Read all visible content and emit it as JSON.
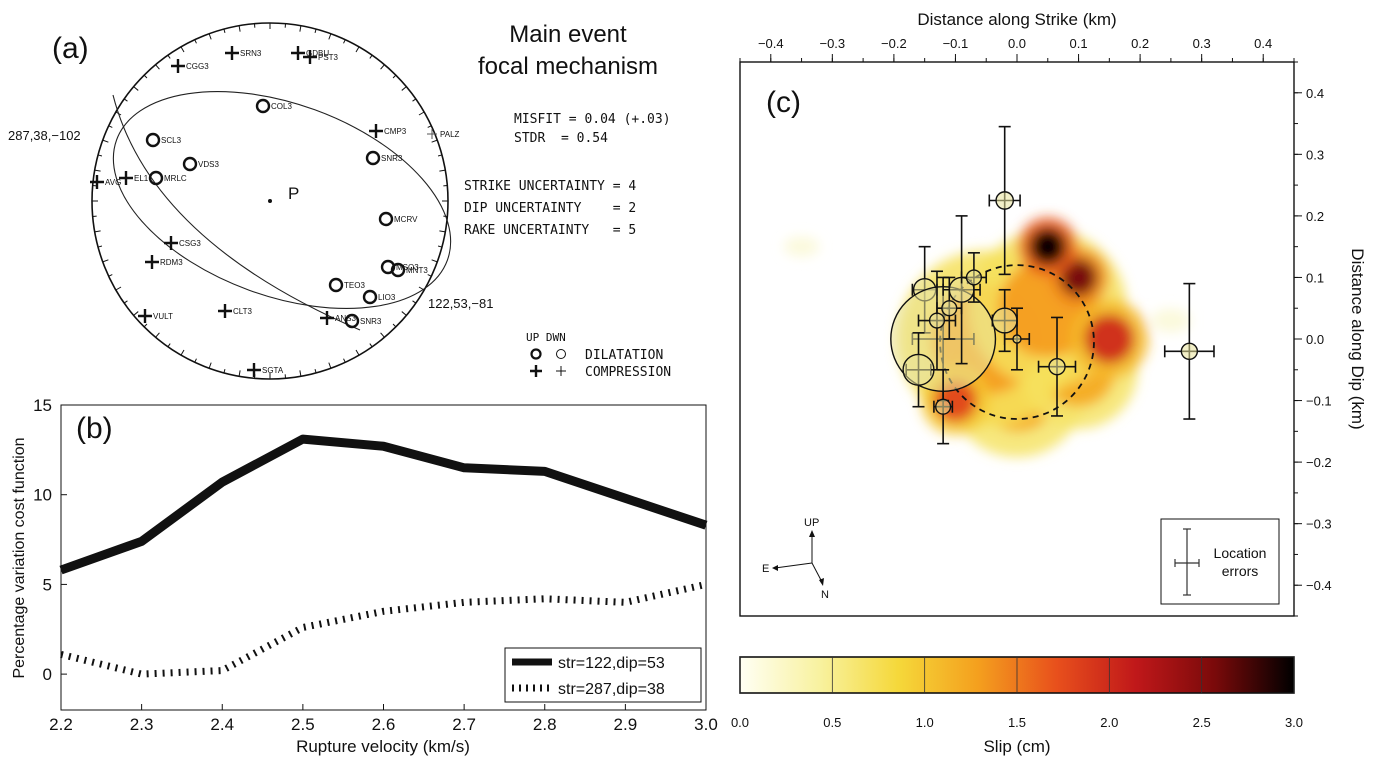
{
  "chart_data": [
    {
      "panel": "(a)",
      "type": "focal-mechanism",
      "title": "Main event\nfocal mechanism",
      "center_label": "P",
      "nodal_planes": [
        {
          "label": "287,38,−102",
          "strike": 287,
          "dip": 38,
          "rake": -102
        },
        {
          "label": "122,53,−81",
          "strike": 122,
          "dip": 53,
          "rake": -81
        }
      ],
      "stats": {
        "misfit": "MISFIT = 0.04 (+.03)",
        "stdr": "STDR  = 0.54",
        "strike_unc": "STRIKE UNCERTAINTY = 4",
        "dip_unc": "DIP UNCERTAINTY    = 2",
        "rake_unc": "RAKE UNCERTAINTY   = 5"
      },
      "legend": {
        "header": "UP DWN",
        "dilatation": "DILATATION",
        "compression": "COMPRESSION"
      },
      "stations": [
        {
          "name": "CGG3",
          "pol": "C"
        },
        {
          "name": "SRN3",
          "pol": "C"
        },
        {
          "name": "GDBU",
          "pol": "C"
        },
        {
          "name": "PST3",
          "pol": "C"
        },
        {
          "name": "COL3",
          "pol": "D"
        },
        {
          "name": "CMP3",
          "pol": "C"
        },
        {
          "name": "PALZ",
          "pol": "c"
        },
        {
          "name": "SCL3",
          "pol": "D"
        },
        {
          "name": "SNR3",
          "pol": "D"
        },
        {
          "name": "VDS3",
          "pol": "D"
        },
        {
          "name": "AVG",
          "pol": "C"
        },
        {
          "name": "EL1",
          "pol": "C"
        },
        {
          "name": "MRLC",
          "pol": "D"
        },
        {
          "name": "MCRV",
          "pol": "D"
        },
        {
          "name": "CSG3",
          "pol": "C"
        },
        {
          "name": "RDM3",
          "pol": "C"
        },
        {
          "name": "MSO3",
          "pol": "D"
        },
        {
          "name": "MNT3",
          "pol": "D"
        },
        {
          "name": "TEO3",
          "pol": "D"
        },
        {
          "name": "LIO3",
          "pol": "D"
        },
        {
          "name": "CLT3",
          "pol": "C"
        },
        {
          "name": "VULT",
          "pol": "C"
        },
        {
          "name": "ANS3",
          "pol": "C"
        },
        {
          "name": "SNR3",
          "pol": "D"
        },
        {
          "name": "SGTA",
          "pol": "C"
        }
      ]
    },
    {
      "panel": "(b)",
      "type": "line",
      "xlabel": "Rupture velocity (km/s)",
      "ylabel": "Percentage variation cost function",
      "xlim": [
        2.2,
        3.0
      ],
      "ylim": [
        -2,
        15
      ],
      "xticks": [
        "2.2",
        "2.3",
        "2.4",
        "2.5",
        "2.6",
        "2.7",
        "2.8",
        "2.9",
        "3.0"
      ],
      "yticks": [
        "0",
        "5",
        "10",
        "15"
      ],
      "x": [
        2.2,
        2.3,
        2.4,
        2.5,
        2.6,
        2.7,
        2.8,
        2.9,
        3.0
      ],
      "series": [
        {
          "name": "str=122,dip=53",
          "style": "solid",
          "values": [
            5.8,
            7.4,
            10.7,
            13.1,
            12.7,
            11.5,
            11.3,
            9.8,
            8.3
          ]
        },
        {
          "name": "str=287,dip=38",
          "style": "dashed",
          "values": [
            1.1,
            0.0,
            0.2,
            2.6,
            3.5,
            4.0,
            4.2,
            4.0,
            5.0
          ]
        }
      ],
      "legend_position": "bottom-right"
    },
    {
      "panel": "(c)",
      "type": "heatmap",
      "xlabel": "Distance along Strike (km)",
      "ylabel": "Distance along Dip (km)",
      "xlim": [
        -0.45,
        0.45
      ],
      "ylim": [
        -0.45,
        0.45
      ],
      "xticks": [
        "−0.4",
        "−0.3",
        "−0.2",
        "−0.1",
        "0.0",
        "0.1",
        "0.2",
        "0.3",
        "0.4"
      ],
      "yticks": [
        "0.4",
        "0.3",
        "0.2",
        "0.1",
        "0.0",
        "−0.1",
        "−0.2",
        "−0.3",
        "−0.4"
      ],
      "colorbar": {
        "label": "Slip (cm)",
        "ticks": [
          "0.0",
          "0.5",
          "1.0",
          "1.5",
          "2.0",
          "2.5",
          "3.0"
        ],
        "range": [
          0,
          3
        ],
        "colors": [
          "#fffff4",
          "#f8f2a0",
          "#f5d83a",
          "#f4a01e",
          "#e8501c",
          "#c0181a",
          "#7a0a0a",
          "#000000"
        ]
      },
      "slip_blobs": [
        {
          "x": 0.05,
          "y": 0.15,
          "amp": 3.0,
          "r": 0.03
        },
        {
          "x": 0.1,
          "y": 0.1,
          "amp": 2.6,
          "r": 0.03
        },
        {
          "x": 0.15,
          "y": 0.0,
          "amp": 2.0,
          "r": 0.04
        },
        {
          "x": -0.1,
          "y": -0.1,
          "amp": 1.8,
          "r": 0.035
        },
        {
          "x": -0.05,
          "y": 0.0,
          "amp": 1.3,
          "r": 0.09
        },
        {
          "x": 0.05,
          "y": 0.05,
          "amp": 1.3,
          "r": 0.08
        },
        {
          "x": 0.0,
          "y": -0.08,
          "amp": 1.2,
          "r": 0.07
        },
        {
          "x": 0.1,
          "y": -0.05,
          "amp": 1.2,
          "r": 0.06
        }
      ],
      "rupture_circle": {
        "x": 0.0,
        "y": -0.005,
        "r": 0.125
      },
      "events": [
        {
          "x": -0.15,
          "y": 0.08,
          "r": 0.018,
          "ex": 0.02,
          "ey": 0.07
        },
        {
          "x": -0.12,
          "y": 0.0,
          "r": 0.085,
          "ex": 0.05,
          "ey": 0.1
        },
        {
          "x": -0.16,
          "y": -0.05,
          "r": 0.025,
          "ex": 0.02,
          "ey": 0.06
        },
        {
          "x": -0.09,
          "y": 0.08,
          "r": 0.02,
          "ex": 0.03,
          "ey": 0.12
        },
        {
          "x": -0.13,
          "y": 0.03,
          "r": 0.012,
          "ex": 0.03,
          "ey": 0.08
        },
        {
          "x": -0.11,
          "y": 0.05,
          "r": 0.012,
          "ex": 0.02,
          "ey": 0.05
        },
        {
          "x": -0.07,
          "y": 0.1,
          "r": 0.012,
          "ex": 0.02,
          "ey": 0.04
        },
        {
          "x": -0.02,
          "y": 0.03,
          "r": 0.02,
          "ex": 0.02,
          "ey": 0.05
        },
        {
          "x": 0.0,
          "y": 0.0,
          "r": 0.006,
          "ex": 0.02,
          "ey": 0.05
        },
        {
          "x": -0.12,
          "y": -0.11,
          "r": 0.012,
          "ex": 0.015,
          "ey": 0.06
        },
        {
          "x": -0.02,
          "y": 0.225,
          "r": 0.014,
          "ex": 0.025,
          "ey": 0.12
        },
        {
          "x": 0.065,
          "y": -0.045,
          "r": 0.013,
          "ex": 0.03,
          "ey": 0.08
        },
        {
          "x": 0.28,
          "y": -0.02,
          "r": 0.013,
          "ex": 0.04,
          "ey": 0.11
        }
      ],
      "inset": {
        "up": "UP",
        "e": "E",
        "n": "N",
        "errors": "Location\nerrors"
      }
    }
  ]
}
